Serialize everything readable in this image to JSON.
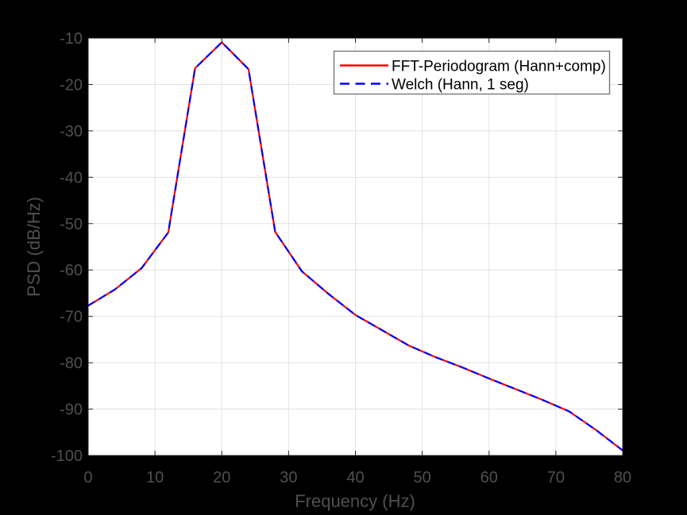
{
  "figure": {
    "background": "#000000",
    "axes_background": "#ffffff",
    "text_color": "#4f4f4f",
    "grid_color": "#e2e2e2",
    "tick_color": "#262626",
    "box_color": "#262626"
  },
  "chart_data": {
    "type": "line",
    "title": "",
    "xlabel": "Frequency (Hz)",
    "ylabel": "PSD (dB/Hz)",
    "xlim": [
      0,
      80
    ],
    "ylim": [
      -100,
      -10
    ],
    "xticks": [
      0,
      10,
      20,
      30,
      40,
      50,
      60,
      70,
      80
    ],
    "yticks": [
      -100,
      -90,
      -80,
      -70,
      -60,
      -50,
      -40,
      -30,
      -20,
      -10
    ],
    "grid": true,
    "legend_position": "top-right",
    "x": [
      0,
      4,
      8,
      12,
      16,
      20,
      24,
      28,
      32,
      36,
      40,
      44,
      48,
      52,
      56,
      60,
      64,
      68,
      72,
      76,
      80
    ],
    "series": [
      {
        "name": "FFT-Periodogram (Hann+comp)",
        "color": "#ff0000",
        "line_style": "solid",
        "values": [
          -67.7,
          -64.2,
          -59.6,
          -51.9,
          -16.5,
          -10.9,
          -16.7,
          -51.8,
          -60.3,
          -65.2,
          -69.7,
          -73.0,
          -76.3,
          -78.8,
          -81.0,
          -83.4,
          -85.7,
          -88.0,
          -90.5,
          -94.5,
          -98.9
        ]
      },
      {
        "name": "Welch (Hann, 1 seg)",
        "color": "#0000ff",
        "line_style": "dashed",
        "values": [
          -67.7,
          -64.2,
          -59.6,
          -51.9,
          -16.5,
          -10.9,
          -16.7,
          -51.8,
          -60.3,
          -65.2,
          -69.7,
          -73.0,
          -76.3,
          -78.8,
          -81.0,
          -83.4,
          -85.7,
          -88.0,
          -90.5,
          -94.5,
          -98.9
        ]
      }
    ]
  },
  "legend": {
    "border_color": "#777777",
    "background": "#ffffff",
    "text_color": "#000000"
  }
}
